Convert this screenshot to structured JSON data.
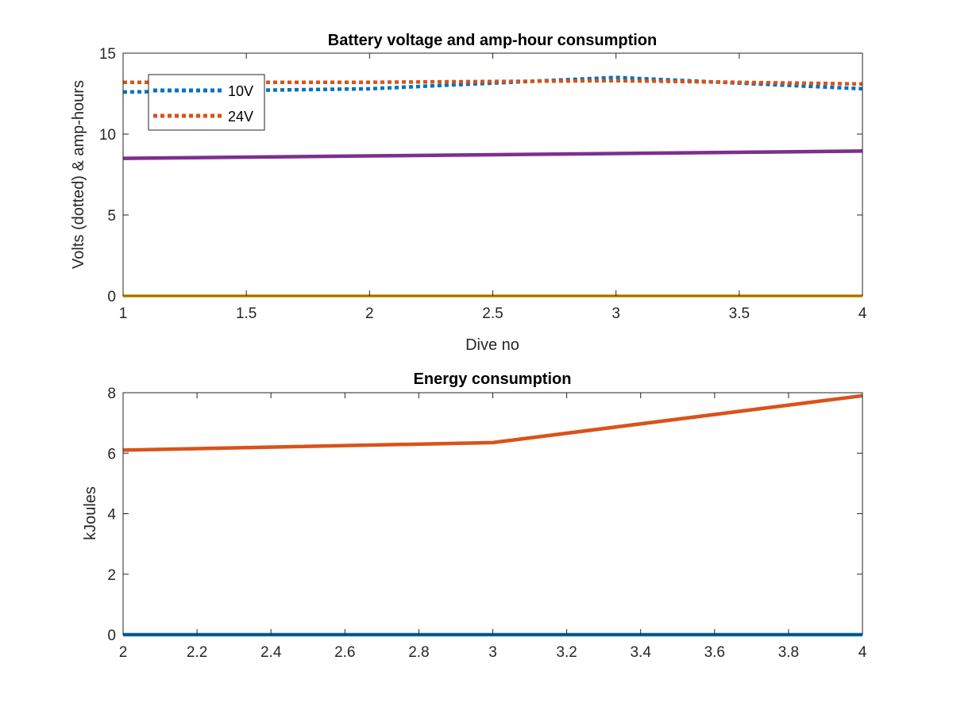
{
  "chart_data": [
    {
      "type": "line",
      "title": "Battery voltage and amp-hour consumption",
      "xlabel": "Dive no",
      "ylabel": "Volts (dotted) & amp-hours",
      "xlim": [
        1,
        4
      ],
      "ylim": [
        0,
        15
      ],
      "xticks": [
        "1",
        "1.5",
        "2",
        "2.5",
        "3",
        "3.5",
        "4"
      ],
      "xtick_values": [
        1,
        1.5,
        2,
        2.5,
        3,
        3.5,
        4
      ],
      "yticks": [
        "0",
        "5",
        "10",
        "15"
      ],
      "ytick_values": [
        0,
        5,
        10,
        15
      ],
      "grid": false,
      "legend_position": "top-left",
      "series": [
        {
          "name": "10V",
          "style": "dotted",
          "color": "#0072BD",
          "x": [
            1,
            2,
            3,
            4
          ],
          "y": [
            12.6,
            12.8,
            13.5,
            12.8
          ]
        },
        {
          "name": "24V",
          "style": "dotted",
          "color": "#D95319",
          "x": [
            1,
            2,
            3,
            4
          ],
          "y": [
            13.2,
            13.2,
            13.3,
            13.1
          ]
        },
        {
          "style": "solid",
          "color": "#EDB120",
          "x": [
            1,
            2,
            3,
            4
          ],
          "y": [
            0,
            0,
            0,
            0
          ]
        },
        {
          "style": "solid",
          "color": "#7E2F8E",
          "x": [
            1,
            2,
            3,
            4
          ],
          "y": [
            8.5,
            8.65,
            8.8,
            8.95
          ]
        }
      ]
    },
    {
      "type": "line",
      "title": "Energy consumption",
      "xlabel": "",
      "ylabel": "kJoules",
      "xlim": [
        2,
        4
      ],
      "ylim": [
        0,
        8
      ],
      "xticks": [
        "2",
        "2.2",
        "2.4",
        "2.6",
        "2.8",
        "3",
        "3.2",
        "3.4",
        "3.6",
        "3.8",
        "4"
      ],
      "xtick_values": [
        2,
        2.2,
        2.4,
        2.6,
        2.8,
        3,
        3.2,
        3.4,
        3.6,
        3.8,
        4
      ],
      "yticks": [
        "0",
        "2",
        "4",
        "6",
        "8"
      ],
      "ytick_values": [
        0,
        2,
        4,
        6,
        8
      ],
      "grid": false,
      "series": [
        {
          "style": "solid",
          "color": "#0072BD",
          "x": [
            2,
            3,
            4
          ],
          "y": [
            0,
            0,
            0
          ]
        },
        {
          "style": "solid",
          "color": "#D95319",
          "x": [
            2,
            3,
            4
          ],
          "y": [
            6.1,
            6.35,
            7.9
          ]
        }
      ]
    }
  ]
}
